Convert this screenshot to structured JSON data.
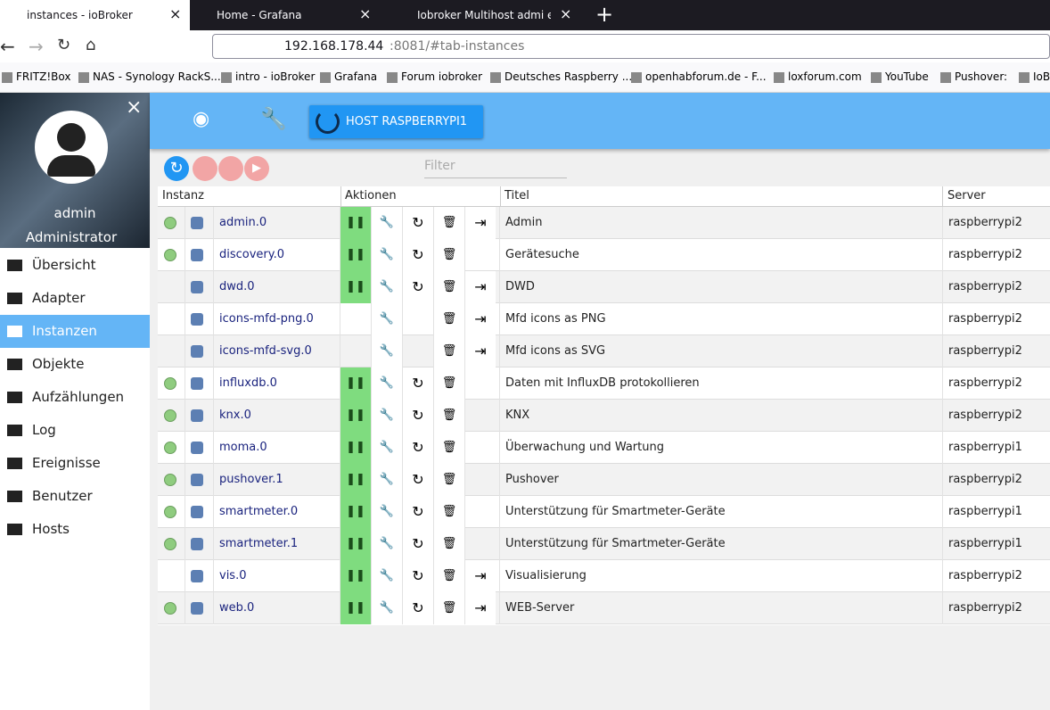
{
  "browser": {
    "tabs": [
      "instances - ioBroker",
      "Home - Grafana",
      "Iobroker Multihost admi enstel"
    ],
    "url": {
      "host": "192.168.178.44",
      "rest": ":8081/#tab-instances"
    },
    "bookmarks": [
      "FRITZ!Box",
      "NAS - Synology RackS...",
      "intro - ioBroker",
      "Grafana",
      "Forum iobroker",
      "Deutsches Raspberry ...",
      "openhabforum.de - F...",
      "loxforum.com",
      "YouTube",
      "Pushover:",
      "IoB"
    ]
  },
  "sidebar": {
    "user": "admin",
    "role": "Administrator",
    "nav": [
      "Übersicht",
      "Adapter",
      "Instanzen",
      "Objekte",
      "Aufzählungen",
      "Log",
      "Ereignisse",
      "Benutzer",
      "Hosts"
    ],
    "selected": 2
  },
  "toolbar": {
    "host": "HOST RASPBERRYPI1",
    "filter": "Filter"
  },
  "table": {
    "headers": [
      "Instanz",
      "Aktionen",
      "Titel",
      "Server"
    ],
    "rows": [
      {
        "name": "admin.0",
        "title": "Admin",
        "server": "raspberrypi2",
        "active": true,
        "pause": true,
        "reload": true,
        "link": true
      },
      {
        "name": "discovery.0",
        "title": "Gerätesuche",
        "server": "raspberrypi2",
        "active": true,
        "pause": true,
        "reload": true,
        "link": false
      },
      {
        "name": "dwd.0",
        "title": "DWD",
        "server": "raspberrypi2",
        "active": false,
        "pause": true,
        "reload": true,
        "link": true
      },
      {
        "name": "icons-mfd-png.0",
        "title": "Mfd icons as PNG",
        "server": "raspberrypi2",
        "active": false,
        "pause": false,
        "reload": false,
        "link": true
      },
      {
        "name": "icons-mfd-svg.0",
        "title": "Mfd icons as SVG",
        "server": "raspberrypi2",
        "active": false,
        "pause": false,
        "reload": false,
        "link": true
      },
      {
        "name": "influxdb.0",
        "title": "Daten mit InfluxDB protokollieren",
        "server": "raspberrypi2",
        "active": true,
        "pause": true,
        "reload": true,
        "link": false
      },
      {
        "name": "knx.0",
        "title": "KNX",
        "server": "raspberrypi2",
        "active": true,
        "pause": true,
        "reload": true,
        "link": false
      },
      {
        "name": "moma.0",
        "title": "Überwachung und Wartung",
        "server": "raspberrypi1",
        "active": true,
        "pause": true,
        "reload": true,
        "link": false
      },
      {
        "name": "pushover.1",
        "title": "Pushover",
        "server": "raspberrypi2",
        "active": true,
        "pause": true,
        "reload": true,
        "link": false
      },
      {
        "name": "smartmeter.0",
        "title": "Unterstützung für Smartmeter-Geräte",
        "server": "raspberrypi1",
        "active": true,
        "pause": true,
        "reload": true,
        "link": false
      },
      {
        "name": "smartmeter.1",
        "title": "Unterstützung für Smartmeter-Geräte",
        "server": "raspberrypi1",
        "active": true,
        "pause": true,
        "reload": true,
        "link": false
      },
      {
        "name": "vis.0",
        "title": "Visualisierung",
        "server": "raspberrypi2",
        "active": false,
        "pause": true,
        "reload": true,
        "link": true
      },
      {
        "name": "web.0",
        "title": "WEB-Server",
        "server": "raspberrypi2",
        "active": true,
        "pause": true,
        "reload": true,
        "link": true
      }
    ]
  }
}
